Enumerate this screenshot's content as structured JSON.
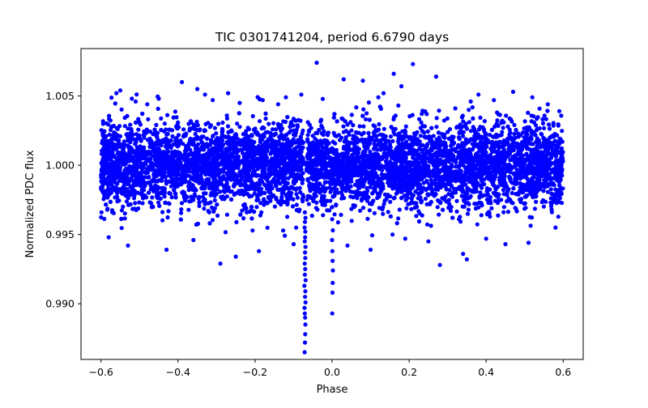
{
  "chart_data": {
    "type": "scatter",
    "title": "TIC 0301741204, period 6.6790 days",
    "xlabel": "Phase",
    "ylabel": "Normalized PDC flux",
    "xlim": [
      -0.652,
      0.652
    ],
    "ylim": [
      0.98598,
      1.00842
    ],
    "xticks": [
      -0.6,
      -0.4,
      -0.2,
      0.0,
      0.2,
      0.4,
      0.6
    ],
    "xtick_labels": [
      "−0.6",
      "−0.4",
      "−0.2",
      "0.0",
      "0.2",
      "0.4",
      "0.6"
    ],
    "yticks": [
      0.99,
      0.995,
      1.0,
      1.005
    ],
    "ytick_labels": [
      "0.990",
      "0.995",
      "1.000",
      "1.005"
    ],
    "grid": false,
    "marker_color": "#0000ff",
    "series": [
      {
        "name": "PDC flux",
        "x": [
          -0.0712,
          -0.0705,
          -0.0698,
          -0.0695,
          -0.0701,
          -0.0708,
          -0.0715,
          -0.069,
          -0.0702,
          -0.0694,
          -0.0719,
          -0.0688,
          -0.0706,
          -0.0699,
          -0.0711,
          -0.0697,
          -0.0703,
          -0.0692,
          -0.0709,
          -0.07,
          -0.0696,
          -0.0713,
          -0.0704,
          -0.0691,
          -0.0707,
          0.0005,
          0.001,
          0.0015,
          0.002,
          0.0012,
          0.0008,
          -0.0001,
          0.0018,
          0.0003,
          -0.56,
          -0.55,
          -0.52,
          -0.51,
          -0.48,
          -0.45,
          -0.39,
          -0.35,
          -0.33,
          -0.31,
          -0.27,
          -0.24,
          -0.18,
          -0.14,
          -0.12,
          -0.08,
          -0.04,
          0.03,
          0.08,
          0.12,
          0.16,
          0.18,
          0.21,
          0.27,
          0.32,
          0.36,
          0.38,
          0.42,
          0.47,
          0.52,
          0.56,
          0.59,
          -0.58,
          -0.53,
          -0.43,
          -0.36,
          -0.29,
          -0.25,
          -0.19,
          -0.1,
          0.04,
          0.1,
          0.19,
          0.25,
          0.28,
          0.34,
          0.35,
          0.4,
          0.45,
          0.51,
          0.58
        ],
        "y": [
          0.9865,
          0.9872,
          0.9878,
          0.9885,
          0.989,
          0.9893,
          0.9897,
          0.9901,
          0.9905,
          0.9909,
          0.9913,
          0.9917,
          0.9921,
          0.9925,
          0.9929,
          0.9933,
          0.9937,
          0.9941,
          0.9945,
          0.9948,
          0.9952,
          0.9955,
          0.9959,
          0.9962,
          0.9966,
          0.9893,
          0.9908,
          0.9915,
          0.9924,
          0.9931,
          0.9938,
          0.9946,
          0.9953,
          0.9961,
          1.0052,
          1.0054,
          1.0048,
          1.0046,
          1.0044,
          1.0048,
          1.006,
          1.0055,
          1.0051,
          1.0047,
          1.0052,
          1.0045,
          1.0047,
          1.0044,
          1.0049,
          1.0051,
          1.0074,
          1.0062,
          1.0061,
          1.0049,
          1.0066,
          1.0057,
          1.0073,
          1.0064,
          1.0041,
          1.0046,
          1.0051,
          1.0047,
          1.0053,
          1.0049,
          1.0044,
          1.0039,
          0.9948,
          0.9942,
          0.9939,
          0.9946,
          0.9929,
          0.9934,
          0.9938,
          0.9943,
          0.9942,
          0.9939,
          0.9947,
          0.9945,
          0.9928,
          0.9936,
          0.9932,
          0.9947,
          0.9943,
          0.9944,
          0.9955
        ]
      }
    ]
  }
}
